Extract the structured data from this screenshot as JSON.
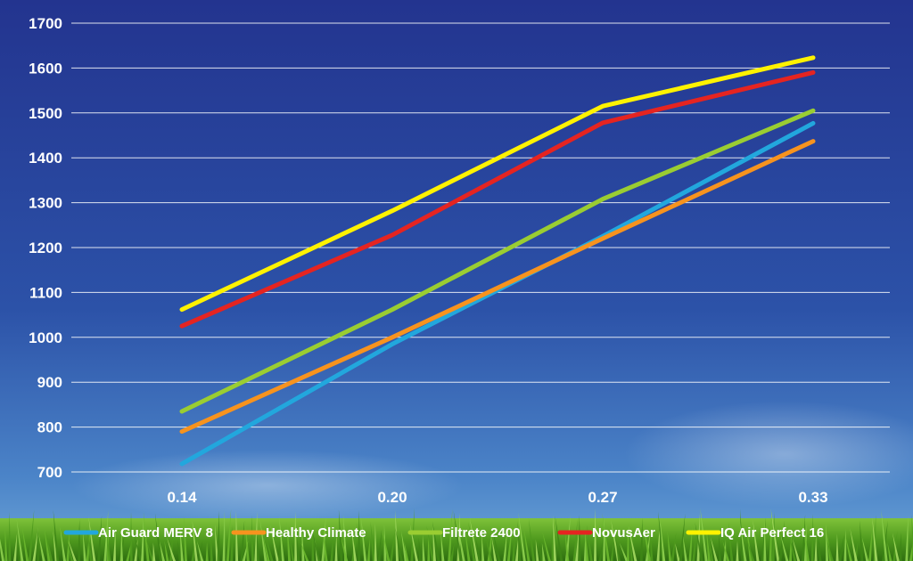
{
  "chart_data": {
    "type": "line",
    "title": "",
    "xlabel": "",
    "ylabel": "",
    "categories": [
      "0.14",
      "0.20",
      "0.27",
      "0.33"
    ],
    "ylim": [
      700,
      1700
    ],
    "yticks": [
      700,
      800,
      900,
      1000,
      1100,
      1200,
      1300,
      1400,
      1500,
      1600,
      1700
    ],
    "grid": true,
    "legend_position": "bottom",
    "series": [
      {
        "name": "Air Guard MERV 8",
        "color": "#22a7dd",
        "values": [
          718,
          985,
          1225,
          1477
        ]
      },
      {
        "name": "Healthy Climate",
        "color": "#f7931e",
        "values": [
          790,
          1000,
          1220,
          1437
        ]
      },
      {
        "name": "Filtrete 2400",
        "color": "#9acd32",
        "values": [
          835,
          1062,
          1308,
          1505
        ]
      },
      {
        "name": "NovusAer",
        "color": "#e52421",
        "values": [
          1025,
          1228,
          1478,
          1590
        ]
      },
      {
        "name": "IQ Air Perfect 16",
        "color": "#fff200",
        "values": [
          1062,
          1282,
          1515,
          1623
        ]
      }
    ]
  }
}
